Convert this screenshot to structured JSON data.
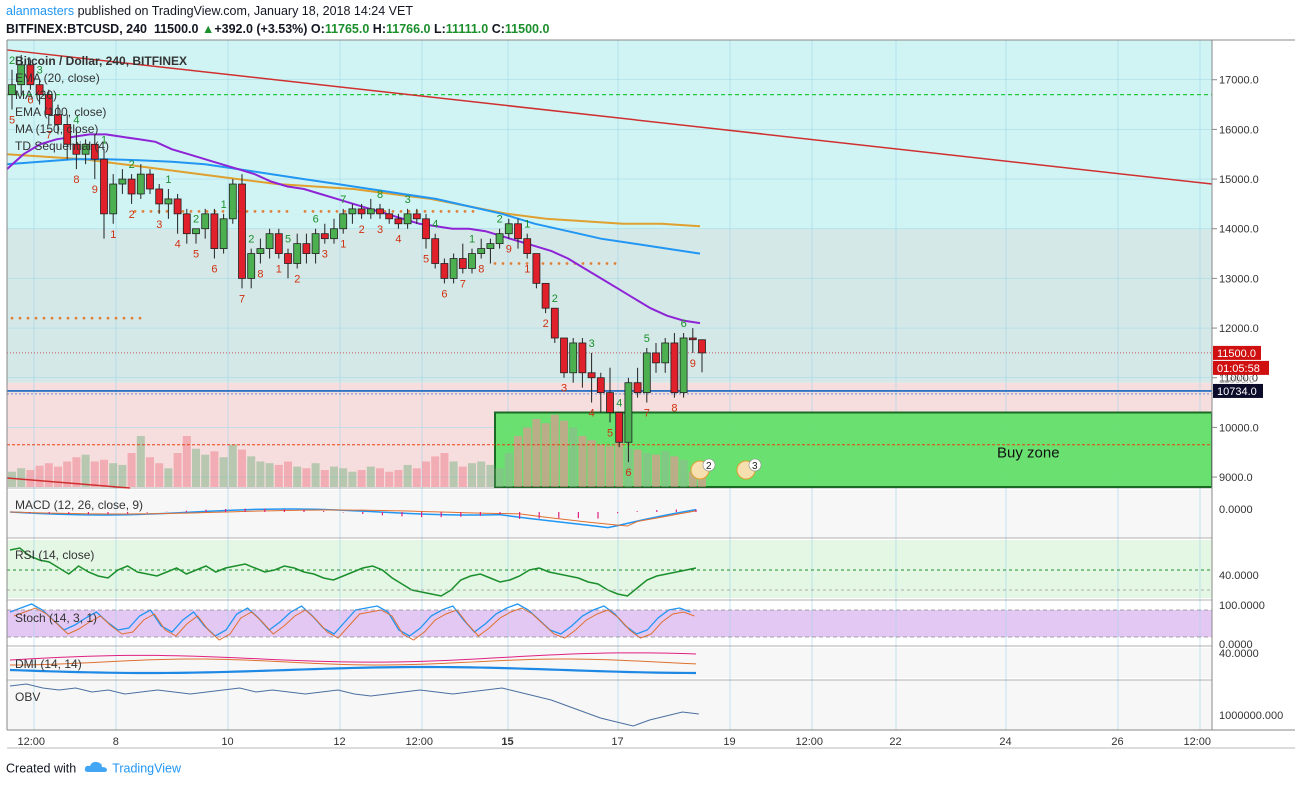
{
  "header": {
    "author": "alanmasters",
    "published_text": "published on TradingView.com, January 18, 2018 14:24 VET",
    "symbol": "BITFINEX:BTCUSD, 240",
    "last": "11500.0",
    "change_arrow": "▲",
    "change": "+392.0 (+3.53%)",
    "o_label": "O:",
    "o_value": "11765.0",
    "h_label": "H:",
    "h_value": "11766.0",
    "l_label": "L:",
    "l_value": "11111.0",
    "c_label": "C:",
    "c_value": "11500.0"
  },
  "legend": {
    "title": "Bitcoin / Dollar, 240, BITFINEX",
    "items": [
      "EMA (20, close)",
      "MA (20)",
      "EMA (100, close)",
      "MA (150, close)",
      "TD Sequential (4)"
    ]
  },
  "panes": {
    "macd": "MACD (12, 26, close, 9)",
    "rsi": "RSI (14, close)",
    "stoch": "Stoch (14, 3, 1)",
    "dmi": "DMI (14, 14)",
    "obv": "OBV"
  },
  "price_axis": [
    "17000.0",
    "16000.0",
    "15000.0",
    "14000.0",
    "13000.0",
    "12000.0",
    "11000.0",
    "10000.0",
    "9000.0"
  ],
  "pane_axis": {
    "macd": [
      "0.0000"
    ],
    "rsi": [
      "40.0000"
    ],
    "stoch": [
      "100.0000",
      "0.0000"
    ],
    "dmi": [
      "40.0000"
    ],
    "obv": [
      "1000000.000"
    ]
  },
  "price_labels": {
    "last": "11500.0",
    "countdown": "01:05:58",
    "hidden": "11000.0",
    "blue_line": "10734.0"
  },
  "time_axis": [
    "12:00",
    "8",
    "10",
    "12",
    "12:00",
    "15",
    "17",
    "19",
    "12:00",
    "22",
    "24",
    "26",
    "12:00"
  ],
  "buy_zone_label": "Buy zone",
  "event_badges": [
    "2",
    "3"
  ],
  "colors": {
    "up": "#4caf50",
    "down": "#e0202a",
    "ema20": "#8e24d6",
    "ema100": "#2196f3",
    "ma150": "#e0a030",
    "buy_zone": "#5be065",
    "trendline": "#d02f2f"
  },
  "chart_data": {
    "type": "candlestick",
    "timeframe": "240",
    "symbol": "BITFINEX:BTCUSD",
    "ylim": [
      8800,
      17800
    ],
    "candles": [
      {
        "o": 16700,
        "h": 17200,
        "l": 16400,
        "c": 16900
      },
      {
        "o": 16900,
        "h": 17500,
        "l": 16700,
        "c": 17300
      },
      {
        "o": 17300,
        "h": 17400,
        "l": 16800,
        "c": 16900
      },
      {
        "o": 16900,
        "h": 17000,
        "l": 16500,
        "c": 16700
      },
      {
        "o": 16700,
        "h": 16800,
        "l": 16100,
        "c": 16300
      },
      {
        "o": 16300,
        "h": 16500,
        "l": 15900,
        "c": 16100
      },
      {
        "o": 16100,
        "h": 16300,
        "l": 15400,
        "c": 15700
      },
      {
        "o": 15700,
        "h": 16000,
        "l": 15200,
        "c": 15500
      },
      {
        "o": 15500,
        "h": 15800,
        "l": 15300,
        "c": 15700
      },
      {
        "o": 15700,
        "h": 15900,
        "l": 15000,
        "c": 15400
      },
      {
        "o": 15400,
        "h": 15600,
        "l": 13800,
        "c": 14300
      },
      {
        "o": 14300,
        "h": 15100,
        "l": 14100,
        "c": 14900
      },
      {
        "o": 14900,
        "h": 15200,
        "l": 14700,
        "c": 15000
      },
      {
        "o": 15000,
        "h": 15100,
        "l": 14500,
        "c": 14700
      },
      {
        "o": 14700,
        "h": 15300,
        "l": 14600,
        "c": 15100
      },
      {
        "o": 15100,
        "h": 15200,
        "l": 14700,
        "c": 14800
      },
      {
        "o": 14800,
        "h": 14900,
        "l": 14300,
        "c": 14500
      },
      {
        "o": 14500,
        "h": 14800,
        "l": 14200,
        "c": 14600
      },
      {
        "o": 14600,
        "h": 14700,
        "l": 13900,
        "c": 14300
      },
      {
        "o": 14300,
        "h": 14400,
        "l": 13700,
        "c": 13900
      },
      {
        "o": 13900,
        "h": 14000,
        "l": 13700,
        "c": 14000
      },
      {
        "o": 14000,
        "h": 14400,
        "l": 13800,
        "c": 14300
      },
      {
        "o": 14300,
        "h": 14400,
        "l": 13400,
        "c": 13600
      },
      {
        "o": 13600,
        "h": 14300,
        "l": 13500,
        "c": 14200
      },
      {
        "o": 14200,
        "h": 15000,
        "l": 14100,
        "c": 14900
      },
      {
        "o": 14900,
        "h": 15100,
        "l": 12800,
        "c": 13000
      },
      {
        "o": 13000,
        "h": 13600,
        "l": 12800,
        "c": 13500
      },
      {
        "o": 13500,
        "h": 13800,
        "l": 13300,
        "c": 13600
      },
      {
        "o": 13600,
        "h": 14000,
        "l": 13400,
        "c": 13900
      },
      {
        "o": 13900,
        "h": 14000,
        "l": 13400,
        "c": 13500
      },
      {
        "o": 13500,
        "h": 13600,
        "l": 13000,
        "c": 13300
      },
      {
        "o": 13300,
        "h": 13900,
        "l": 13200,
        "c": 13700
      },
      {
        "o": 13700,
        "h": 13900,
        "l": 13300,
        "c": 13500
      },
      {
        "o": 13500,
        "h": 14000,
        "l": 13300,
        "c": 13900
      },
      {
        "o": 13900,
        "h": 14100,
        "l": 13700,
        "c": 13800
      },
      {
        "o": 13800,
        "h": 14200,
        "l": 13700,
        "c": 14000
      },
      {
        "o": 14000,
        "h": 14400,
        "l": 13900,
        "c": 14300
      },
      {
        "o": 14300,
        "h": 14500,
        "l": 14100,
        "c": 14400
      },
      {
        "o": 14400,
        "h": 14500,
        "l": 14200,
        "c": 14300
      },
      {
        "o": 14300,
        "h": 14600,
        "l": 14200,
        "c": 14400
      },
      {
        "o": 14400,
        "h": 14500,
        "l": 14200,
        "c": 14300
      },
      {
        "o": 14300,
        "h": 14400,
        "l": 14100,
        "c": 14200
      },
      {
        "o": 14200,
        "h": 14300,
        "l": 14000,
        "c": 14100
      },
      {
        "o": 14100,
        "h": 14400,
        "l": 14000,
        "c": 14300
      },
      {
        "o": 14300,
        "h": 14400,
        "l": 14100,
        "c": 14200
      },
      {
        "o": 14200,
        "h": 14300,
        "l": 13600,
        "c": 13800
      },
      {
        "o": 13800,
        "h": 13900,
        "l": 13200,
        "c": 13300
      },
      {
        "o": 13300,
        "h": 13400,
        "l": 12900,
        "c": 13000
      },
      {
        "o": 13000,
        "h": 13500,
        "l": 12900,
        "c": 13400
      },
      {
        "o": 13400,
        "h": 13700,
        "l": 13100,
        "c": 13200
      },
      {
        "o": 13200,
        "h": 13600,
        "l": 13100,
        "c": 13500
      },
      {
        "o": 13500,
        "h": 13800,
        "l": 13400,
        "c": 13600
      },
      {
        "o": 13600,
        "h": 13800,
        "l": 13300,
        "c": 13700
      },
      {
        "o": 13700,
        "h": 14000,
        "l": 13600,
        "c": 13900
      },
      {
        "o": 13900,
        "h": 14200,
        "l": 13800,
        "c": 14100
      },
      {
        "o": 14100,
        "h": 14200,
        "l": 13600,
        "c": 13800
      },
      {
        "o": 13800,
        "h": 13900,
        "l": 13400,
        "c": 13500
      },
      {
        "o": 13500,
        "h": 13500,
        "l": 12800,
        "c": 12900
      },
      {
        "o": 12900,
        "h": 12900,
        "l": 12300,
        "c": 12400
      },
      {
        "o": 12400,
        "h": 12400,
        "l": 11700,
        "c": 11800
      },
      {
        "o": 11800,
        "h": 11800,
        "l": 11000,
        "c": 11100
      },
      {
        "o": 11100,
        "h": 11800,
        "l": 10900,
        "c": 11700
      },
      {
        "o": 11700,
        "h": 11800,
        "l": 10800,
        "c": 11100
      },
      {
        "o": 11100,
        "h": 11500,
        "l": 10500,
        "c": 11000
      },
      {
        "o": 11000,
        "h": 11100,
        "l": 10300,
        "c": 10700
      },
      {
        "o": 10700,
        "h": 11200,
        "l": 10100,
        "c": 10300
      },
      {
        "o": 10300,
        "h": 10300,
        "l": 9600,
        "c": 9700
      },
      {
        "o": 9700,
        "h": 11000,
        "l": 9300,
        "c": 10900
      },
      {
        "o": 10900,
        "h": 11200,
        "l": 10600,
        "c": 10700
      },
      {
        "o": 10700,
        "h": 11600,
        "l": 10500,
        "c": 11500
      },
      {
        "o": 11500,
        "h": 11700,
        "l": 11100,
        "c": 11300
      },
      {
        "o": 11300,
        "h": 11800,
        "l": 11100,
        "c": 11700
      },
      {
        "o": 11700,
        "h": 11900,
        "l": 10600,
        "c": 10700
      },
      {
        "o": 10700,
        "h": 11900,
        "l": 10600,
        "c": 11800
      },
      {
        "o": 11800,
        "h": 12000,
        "l": 11500,
        "c": 11765
      },
      {
        "o": 11765,
        "h": 11766,
        "l": 11111,
        "c": 11500
      }
    ],
    "ema20": [
      15200,
      15500,
      15700,
      15800,
      15850,
      15900,
      15900,
      15850,
      15800,
      15750,
      15600,
      15500,
      15400,
      15300,
      15200,
      15100,
      14950,
      14850,
      14800,
      14700,
      14600,
      14500,
      14400,
      14300,
      14200,
      14100,
      14050,
      14000,
      14000,
      13950,
      13850,
      13750,
      13650,
      13550,
      13400,
      13200,
      13000,
      12800,
      12600,
      12400,
      12250,
      12150,
      12100
    ],
    "ema100": [
      15300,
      15350,
      15400,
      15400,
      15380,
      15350,
      15300,
      15200,
      15100,
      15000,
      14900,
      14800,
      14700,
      14600,
      14450,
      14300,
      14100,
      13950,
      13800,
      13700,
      13600,
      13500
    ],
    "ma150": [
      15500,
      15450,
      15400,
      15300,
      15200,
      15100,
      15000,
      14900,
      14850,
      14800,
      14700,
      14600,
      14450,
      14300,
      14200,
      14150,
      14100,
      14100,
      14050
    ],
    "trendline": [
      {
        "x": "start",
        "y": 17600
      },
      {
        "x": "end",
        "y": 14900
      }
    ],
    "buy_zone": {
      "from": 8800,
      "to": 10300
    },
    "horizontal_levels": [
      16700,
      11500,
      10734,
      9650
    ],
    "td_counts_up": [
      "2",
      "3",
      "4",
      "1",
      "2",
      "1",
      "2",
      "1",
      "2",
      "5",
      "6",
      "7",
      "8",
      "3",
      "4",
      "1",
      "2",
      "1",
      "2",
      "3",
      "4",
      "5",
      "6"
    ],
    "td_counts_down": [
      "5",
      "6",
      "7",
      "8",
      "9",
      "1",
      "2",
      "3",
      "4",
      "5",
      "6",
      "7",
      "8",
      "1",
      "2",
      "3",
      "1",
      "2",
      "3",
      "4",
      "5",
      "6",
      "7",
      "8",
      "9",
      "1",
      "2",
      "3",
      "4",
      "5",
      "6",
      "7",
      "8",
      "9"
    ],
    "rsi_level": 40,
    "stoch_levels": [
      80,
      20
    ]
  }
}
